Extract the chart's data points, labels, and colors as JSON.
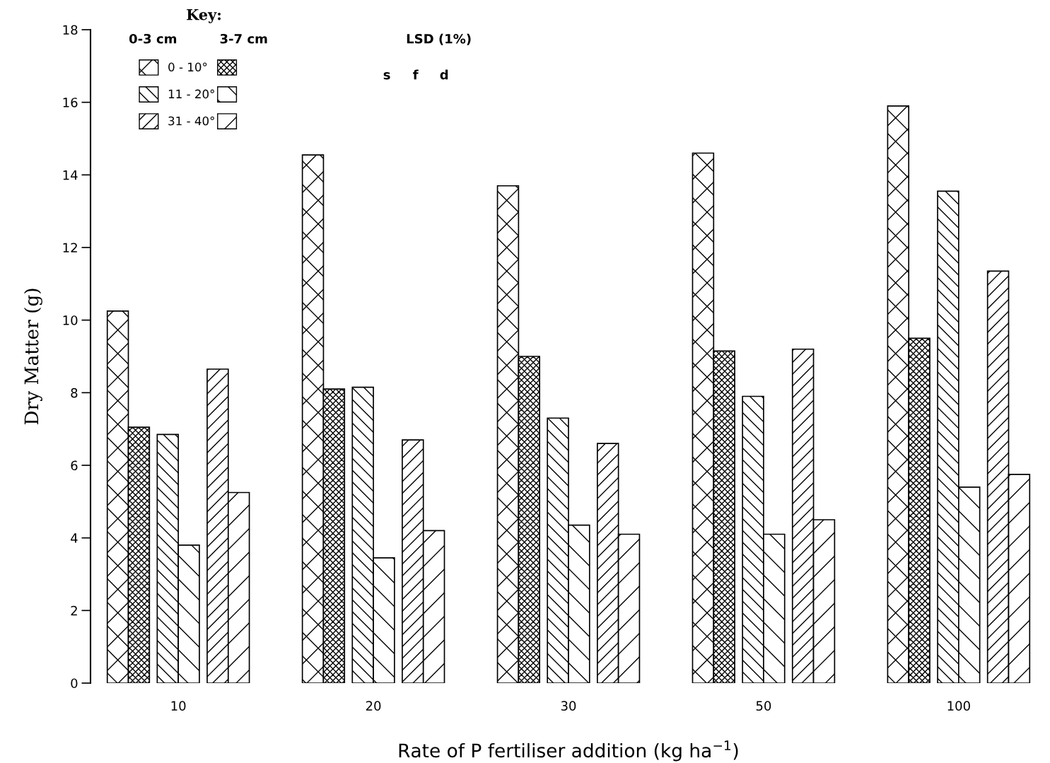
{
  "chart_data": {
    "type": "bar",
    "xlabel": "Rate of P fertiliser addition (kg ha$^{−1}$)",
    "ylabel": "Dry Matter (g)",
    "legend_title": "Key:",
    "legend": "top left",
    "categories": [
      "10",
      "20",
      "30",
      "50",
      "100"
    ],
    "ylim": [
      0,
      18
    ],
    "yticks": [
      0,
      2,
      4,
      6,
      8,
      10,
      12,
      14,
      16,
      18
    ],
    "grid": false,
    "series": [
      {
        "name": "0 - 10°",
        "color": "#000000",
        "values": [
          10.25,
          14.55,
          13.7,
          14.6,
          15.9
        ]
      },
      {
        "color": "#000000",
        "values": [
          7.05,
          8.1,
          9.0,
          9.15,
          9.5
        ]
      },
      {
        "name": "11 - 20°",
        "color": "#000000",
        "values": [
          6.85,
          8.15,
          7.3,
          7.9,
          13.55
        ]
      },
      {
        "color": "#000000",
        "values": [
          3.8,
          3.45,
          4.35,
          4.1,
          5.4
        ]
      },
      {
        "name": "31 - 40°",
        "color": "#000000",
        "values": [
          8.65,
          6.7,
          6.6,
          9.2,
          11.35
        ]
      },
      {
        "color": "#000000",
        "values": [
          5.25,
          4.2,
          4.1,
          4.5,
          5.75
        ]
      }
    ],
    "annotations": [
      "0-3 cm",
      "3-7 cm",
      "LSD (1%)",
      "s",
      "f",
      "d"
    ]
  }
}
